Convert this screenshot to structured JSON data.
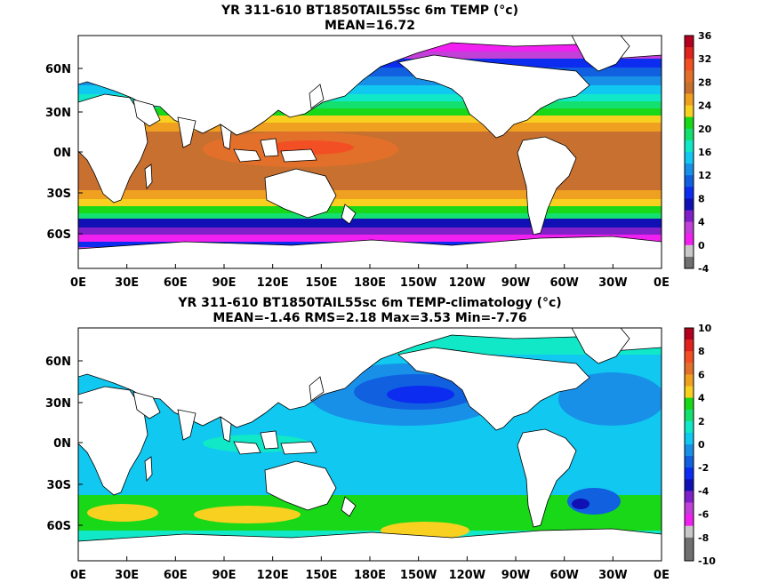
{
  "panels": [
    {
      "title_line1": "YR 311-610 BT1850TAIL55sc 6m TEMP (°c)",
      "title_line2": "MEAN=16.72",
      "colorbar": {
        "labels": [
          "36",
          "32",
          "28",
          "24",
          "20",
          "16",
          "12",
          "8",
          "4",
          "0",
          "-4"
        ],
        "colors": [
          "#b4001e",
          "#e0231e",
          "#f25024",
          "#e3702a",
          "#c8702f",
          "#f0a020",
          "#f8d020",
          "#18d818",
          "#14e070",
          "#10e8c8",
          "#10c8f0",
          "#1890e8",
          "#1060e0",
          "#0c2cf0",
          "#1010b4",
          "#8020c8",
          "#c040d8",
          "#f020f0",
          "#c8c8c8",
          "#707070"
        ]
      },
      "x_labels": [
        "0E",
        "30E",
        "60E",
        "90E",
        "120E",
        "150E",
        "180E",
        "150W",
        "120W",
        "90W",
        "60W",
        "30W",
        "0E"
      ],
      "y_labels": [
        "60N",
        "30N",
        "0N",
        "30S",
        "60S"
      ]
    },
    {
      "title_line1": "YR 311-610 BT1850TAIL55sc 6m TEMP-climatology (°c)",
      "title_line2": "MEAN=-1.46   RMS=2.18   Max=3.53   Min=-7.76",
      "colorbar": {
        "labels": [
          "10",
          "8",
          "6",
          "4",
          "2",
          "0",
          "-2",
          "-4",
          "-6",
          "-8",
          "-10"
        ],
        "colors": [
          "#b4001e",
          "#e0231e",
          "#f25024",
          "#e3702a",
          "#f0a020",
          "#f8d020",
          "#18d818",
          "#14e070",
          "#10e8c8",
          "#10c8f0",
          "#1890e8",
          "#1060e0",
          "#0c2cf0",
          "#1010b4",
          "#8020c8",
          "#c040d8",
          "#f020f0",
          "#c8c8c8",
          "#707070",
          "#707070"
        ]
      },
      "x_labels": [
        "0E",
        "30E",
        "60E",
        "90E",
        "120E",
        "150E",
        "180E",
        "150W",
        "120W",
        "90W",
        "60W",
        "30W",
        "0E"
      ],
      "y_labels": [
        "60N",
        "30N",
        "0N",
        "30S",
        "60S"
      ]
    }
  ]
}
